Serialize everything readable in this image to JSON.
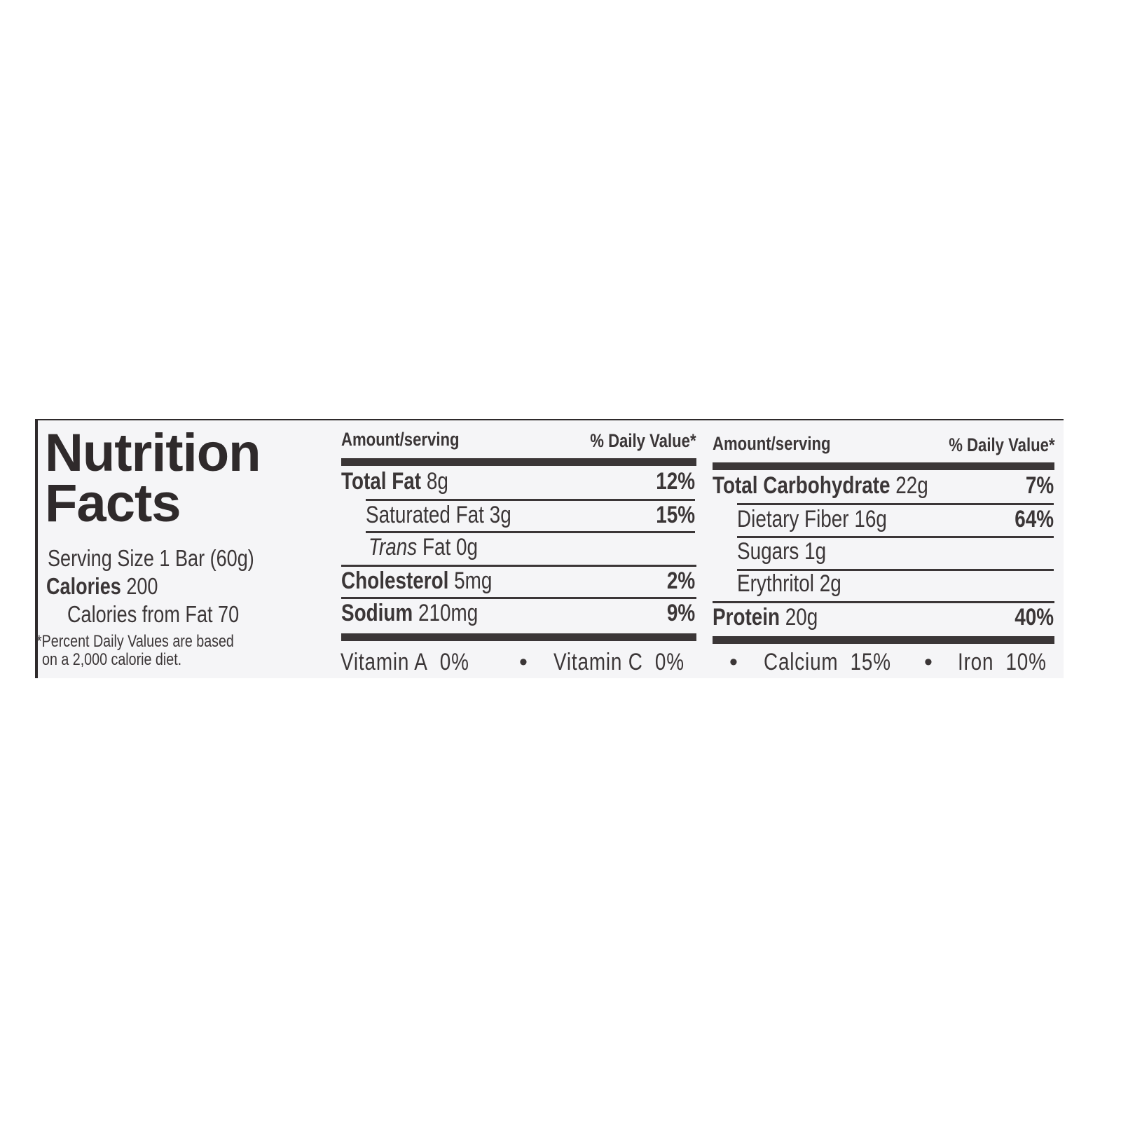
{
  "title_line1": "Nutrition",
  "title_line2": "Facts",
  "serving_size": "Serving Size 1 Bar (60g)",
  "calories_label": "Calories",
  "calories_value": "200",
  "calories_from_fat": "Calories from Fat 70",
  "footnote_line1": "*Percent Daily Values are based",
  "footnote_line2": "on a 2,000 calorie diet.",
  "header": {
    "amount": "Amount/serving",
    "dv": "% Daily Value*"
  },
  "left_rows": [
    {
      "name": "Total Fat",
      "amount": "8g",
      "dv": "12%"
    },
    {
      "name": "Saturated Fat",
      "amount": "3g",
      "dv": "15%"
    },
    {
      "name": "Trans",
      "name_suffix": "Fat",
      "amount": "0g",
      "dv": ""
    },
    {
      "name": "Cholesterol",
      "amount": "5mg",
      "dv": "2%"
    },
    {
      "name": "Sodium",
      "amount": "210mg",
      "dv": "9%"
    }
  ],
  "right_rows": [
    {
      "name": "Total Carbohydrate",
      "amount": "22g",
      "dv": "7%"
    },
    {
      "name": "Dietary Fiber",
      "amount": "16g",
      "dv": "64%"
    },
    {
      "name": "Sugars",
      "amount": "1g",
      "dv": ""
    },
    {
      "name": "Erythritol",
      "amount": "2g",
      "dv": ""
    },
    {
      "name": "Protein",
      "amount": "20g",
      "dv": "40%"
    }
  ],
  "vitamins": [
    {
      "name": "Vitamin A",
      "value": "0%"
    },
    {
      "name": "Vitamin C",
      "value": "0%"
    },
    {
      "name": "Calcium",
      "value": "15%"
    },
    {
      "name": "Iron",
      "value": "10%"
    }
  ],
  "separator": "•"
}
